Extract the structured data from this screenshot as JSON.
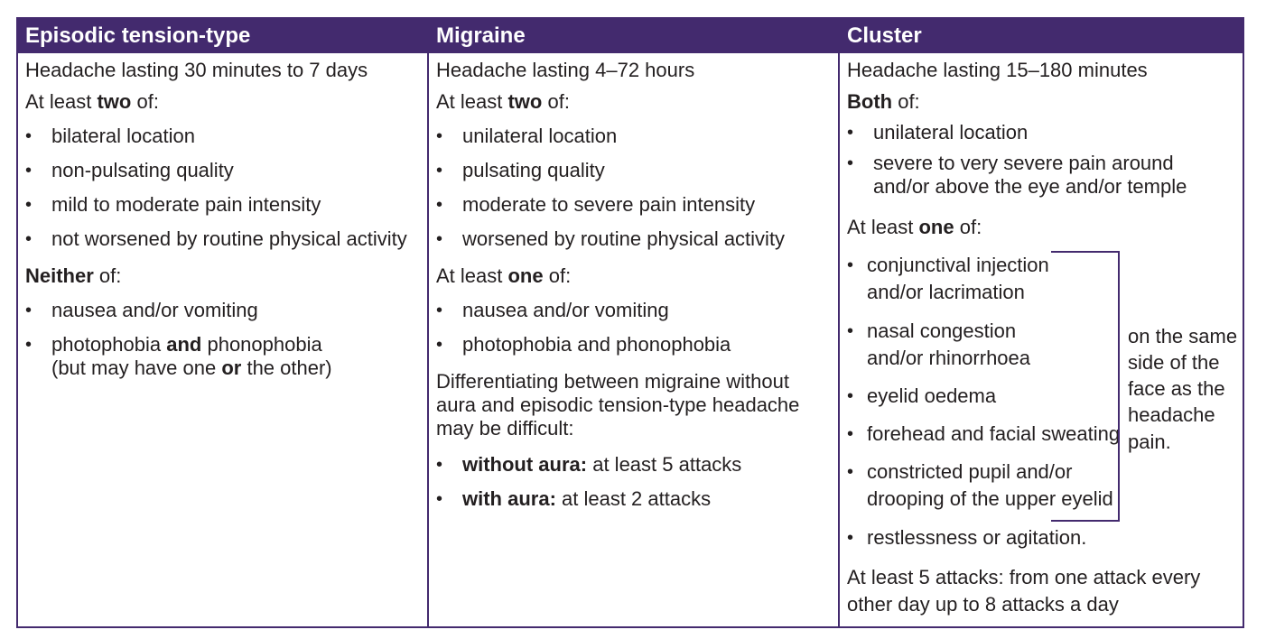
{
  "headers": {
    "col1": "Episodic tension-type",
    "col2": "Migraine",
    "col3": "Cluster"
  },
  "col1": {
    "duration": "Headache lasting 30 minutes to 7 days",
    "at_least_pre": "At least ",
    "at_least_bold": "two",
    "at_least_post": " of:",
    "items": [
      "bilateral location",
      "non-pulsating quality",
      "mild to moderate pain intensity",
      "not worsened by routine physical activity"
    ],
    "neither_bold": "Neither",
    "neither_post": " of:",
    "neither_items": {
      "item1": "nausea and/or vomiting",
      "item2_a": "photophobia ",
      "item2_bold": "and",
      "item2_b": " phonophobia",
      "item2_line2_a": "(but may have one ",
      "item2_line2_bold": "or",
      "item2_line2_b": " the other)"
    }
  },
  "col2": {
    "duration": "Headache lasting 4–72 hours",
    "at_least_pre": "At least ",
    "at_least_bold": "two",
    "at_least_post": " of:",
    "items": [
      "unilateral location",
      "pulsating quality",
      "moderate to severe pain intensity",
      "worsened by routine physical activity"
    ],
    "one_pre": "At least ",
    "one_bold": "one",
    "one_post": " of:",
    "one_items": [
      "nausea and/or vomiting",
      "photophobia and phonophobia"
    ],
    "diff_lines": [
      "Differentiating between migraine without",
      "aura and episodic tension-type headache",
      "may be difficult:"
    ],
    "attacks": [
      {
        "bold": "without aura:",
        "text": " at least 5 attacks"
      },
      {
        "bold": "with aura:",
        "text": " at least 2 attacks"
      }
    ]
  },
  "col3": {
    "duration": "Headache lasting 15–180 minutes",
    "both_bold": "Both",
    "both_post": " of:",
    "both_items": {
      "item1": "unilateral location",
      "item2_line1": "severe to very severe pain around",
      "item2_line2": "and/or above the eye and/or temple"
    },
    "one_pre": "At least ",
    "one_bold": "one",
    "one_post": " of:",
    "one_items": {
      "i1a": "conjunctival injection",
      "i1b": "and/or lacrimation",
      "i2a": "nasal congestion",
      "i2b": "and/or rhinorrhoea",
      "i3": "eyelid oedema",
      "i4": "forehead and facial sweating",
      "i5a": "constricted pupil and/or",
      "i5b": "drooping of the upper eyelid",
      "i6": "restlessness or agitation."
    },
    "same_side": [
      "on the same",
      "side of the",
      "face as the",
      "headache",
      "pain."
    ],
    "attacks_lines": [
      "At least 5 attacks: from one attack every",
      "other day up to 8 attacks a day"
    ]
  }
}
